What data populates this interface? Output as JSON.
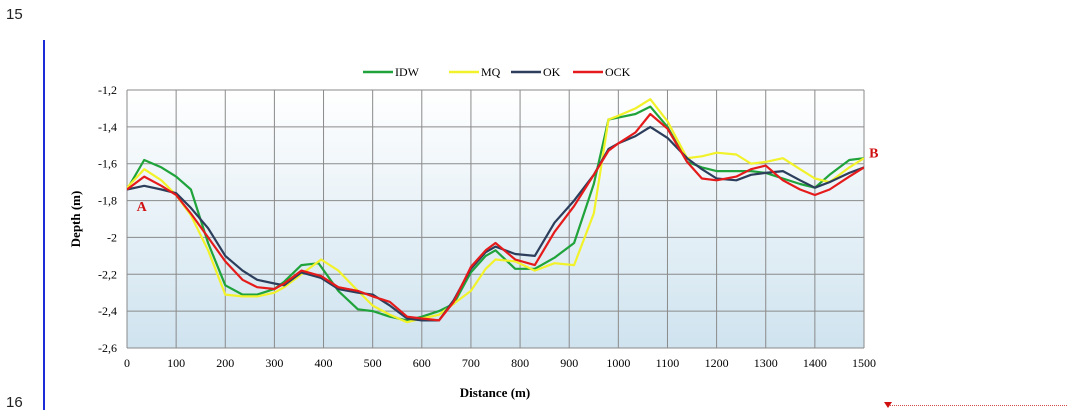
{
  "page": {
    "line_number_top": "15",
    "line_number_bottom": "16"
  },
  "chart_data": {
    "type": "line",
    "title": "",
    "xlabel": "Distance (m)",
    "ylabel": "Depth (m)",
    "xlim": [
      0,
      1500
    ],
    "ylim": [
      -2.6,
      -1.2
    ],
    "x_ticks": [
      0,
      100,
      200,
      300,
      400,
      500,
      600,
      700,
      800,
      900,
      1000,
      1100,
      1200,
      1300,
      1400,
      1500
    ],
    "x_tick_labels": [
      "0",
      "100",
      "200",
      "300",
      "400",
      "500",
      "600",
      "700",
      "800",
      "900",
      "1000",
      "1100",
      "1200",
      "1300",
      "1400",
      "1500"
    ],
    "y_ticks": [
      -1.2,
      -1.4,
      -1.6,
      -1.8,
      -2,
      -2.2,
      -2.4,
      -2.6
    ],
    "y_tick_labels": [
      "-1,2",
      "-1,4",
      "-1,6",
      "-1,8",
      "-2",
      "-2,2",
      "-2,4",
      "-2,6"
    ],
    "grid": true,
    "legend_position": "top",
    "background_gradient": [
      "#ffffff",
      "#cfe3ef"
    ],
    "annotations": [
      {
        "text": "A",
        "x": 30,
        "y": -1.83
      },
      {
        "text": "B",
        "x": 1520,
        "y": -1.54
      }
    ],
    "series": [
      {
        "name": "IDW",
        "color": "#1fa33a",
        "x": [
          0,
          35,
          70,
          100,
          130,
          165,
          200,
          235,
          265,
          300,
          320,
          355,
          390,
          430,
          470,
          500,
          535,
          570,
          600,
          635,
          665,
          700,
          730,
          750,
          790,
          830,
          870,
          910,
          950,
          980,
          1000,
          1035,
          1065,
          1100,
          1140,
          1170,
          1200,
          1240,
          1270,
          1300,
          1335,
          1370,
          1400,
          1430,
          1470,
          1500
        ],
        "y": [
          -1.74,
          -1.58,
          -1.62,
          -1.67,
          -1.74,
          -2.03,
          -2.26,
          -2.31,
          -2.31,
          -2.28,
          -2.24,
          -2.15,
          -2.14,
          -2.29,
          -2.39,
          -2.4,
          -2.43,
          -2.45,
          -2.43,
          -2.4,
          -2.36,
          -2.19,
          -2.1,
          -2.07,
          -2.17,
          -2.17,
          -2.11,
          -2.03,
          -1.71,
          -1.36,
          -1.35,
          -1.33,
          -1.29,
          -1.4,
          -1.59,
          -1.62,
          -1.64,
          -1.64,
          -1.64,
          -1.65,
          -1.68,
          -1.71,
          -1.73,
          -1.66,
          -1.58,
          -1.57
        ]
      },
      {
        "name": "MQ",
        "color": "#f2f22a",
        "x": [
          0,
          35,
          70,
          100,
          130,
          165,
          200,
          235,
          265,
          300,
          320,
          355,
          395,
          430,
          470,
          500,
          535,
          570,
          600,
          635,
          665,
          700,
          730,
          750,
          790,
          830,
          870,
          910,
          950,
          980,
          1000,
          1035,
          1065,
          1100,
          1140,
          1170,
          1200,
          1240,
          1270,
          1300,
          1335,
          1370,
          1400,
          1430,
          1470,
          1500
        ],
        "y": [
          -1.73,
          -1.63,
          -1.69,
          -1.77,
          -1.88,
          -2.07,
          -2.31,
          -2.32,
          -2.32,
          -2.3,
          -2.27,
          -2.2,
          -2.12,
          -2.18,
          -2.29,
          -2.37,
          -2.42,
          -2.46,
          -2.44,
          -2.42,
          -2.36,
          -2.29,
          -2.17,
          -2.12,
          -2.13,
          -2.18,
          -2.14,
          -2.15,
          -1.87,
          -1.36,
          -1.34,
          -1.3,
          -1.25,
          -1.37,
          -1.57,
          -1.56,
          -1.54,
          -1.55,
          -1.6,
          -1.59,
          -1.57,
          -1.63,
          -1.68,
          -1.7,
          -1.62,
          -1.57
        ]
      },
      {
        "name": "OK",
        "color": "#2c3e5c",
        "x": [
          0,
          35,
          70,
          100,
          130,
          165,
          200,
          235,
          265,
          300,
          320,
          355,
          395,
          430,
          470,
          500,
          535,
          570,
          600,
          635,
          665,
          700,
          730,
          750,
          790,
          830,
          870,
          910,
          950,
          980,
          1000,
          1035,
          1065,
          1100,
          1140,
          1170,
          1200,
          1240,
          1270,
          1300,
          1335,
          1370,
          1400,
          1430,
          1470,
          1500
        ],
        "y": [
          -1.74,
          -1.72,
          -1.74,
          -1.76,
          -1.84,
          -1.95,
          -2.1,
          -2.18,
          -2.23,
          -2.25,
          -2.26,
          -2.19,
          -2.22,
          -2.28,
          -2.3,
          -2.31,
          -2.37,
          -2.44,
          -2.45,
          -2.45,
          -2.34,
          -2.17,
          -2.08,
          -2.05,
          -2.09,
          -2.1,
          -1.92,
          -1.8,
          -1.66,
          -1.52,
          -1.49,
          -1.45,
          -1.4,
          -1.46,
          -1.57,
          -1.63,
          -1.68,
          -1.69,
          -1.66,
          -1.65,
          -1.64,
          -1.69,
          -1.73,
          -1.7,
          -1.65,
          -1.62
        ]
      },
      {
        "name": "OCK",
        "color": "#e51b1b",
        "x": [
          0,
          35,
          70,
          100,
          130,
          165,
          200,
          235,
          265,
          300,
          320,
          355,
          395,
          430,
          470,
          500,
          535,
          570,
          600,
          635,
          665,
          700,
          730,
          750,
          790,
          830,
          870,
          910,
          950,
          980,
          1000,
          1035,
          1065,
          1100,
          1140,
          1170,
          1200,
          1240,
          1270,
          1300,
          1335,
          1370,
          1400,
          1430,
          1470,
          1500
        ],
        "y": [
          -1.74,
          -1.67,
          -1.72,
          -1.77,
          -1.87,
          -2.0,
          -2.13,
          -2.23,
          -2.27,
          -2.28,
          -2.25,
          -2.18,
          -2.21,
          -2.27,
          -2.29,
          -2.32,
          -2.35,
          -2.43,
          -2.44,
          -2.45,
          -2.35,
          -2.16,
          -2.07,
          -2.03,
          -2.12,
          -2.15,
          -1.97,
          -1.83,
          -1.66,
          -1.53,
          -1.49,
          -1.43,
          -1.33,
          -1.41,
          -1.59,
          -1.68,
          -1.69,
          -1.67,
          -1.63,
          -1.61,
          -1.69,
          -1.74,
          -1.77,
          -1.74,
          -1.67,
          -1.62
        ]
      }
    ]
  }
}
